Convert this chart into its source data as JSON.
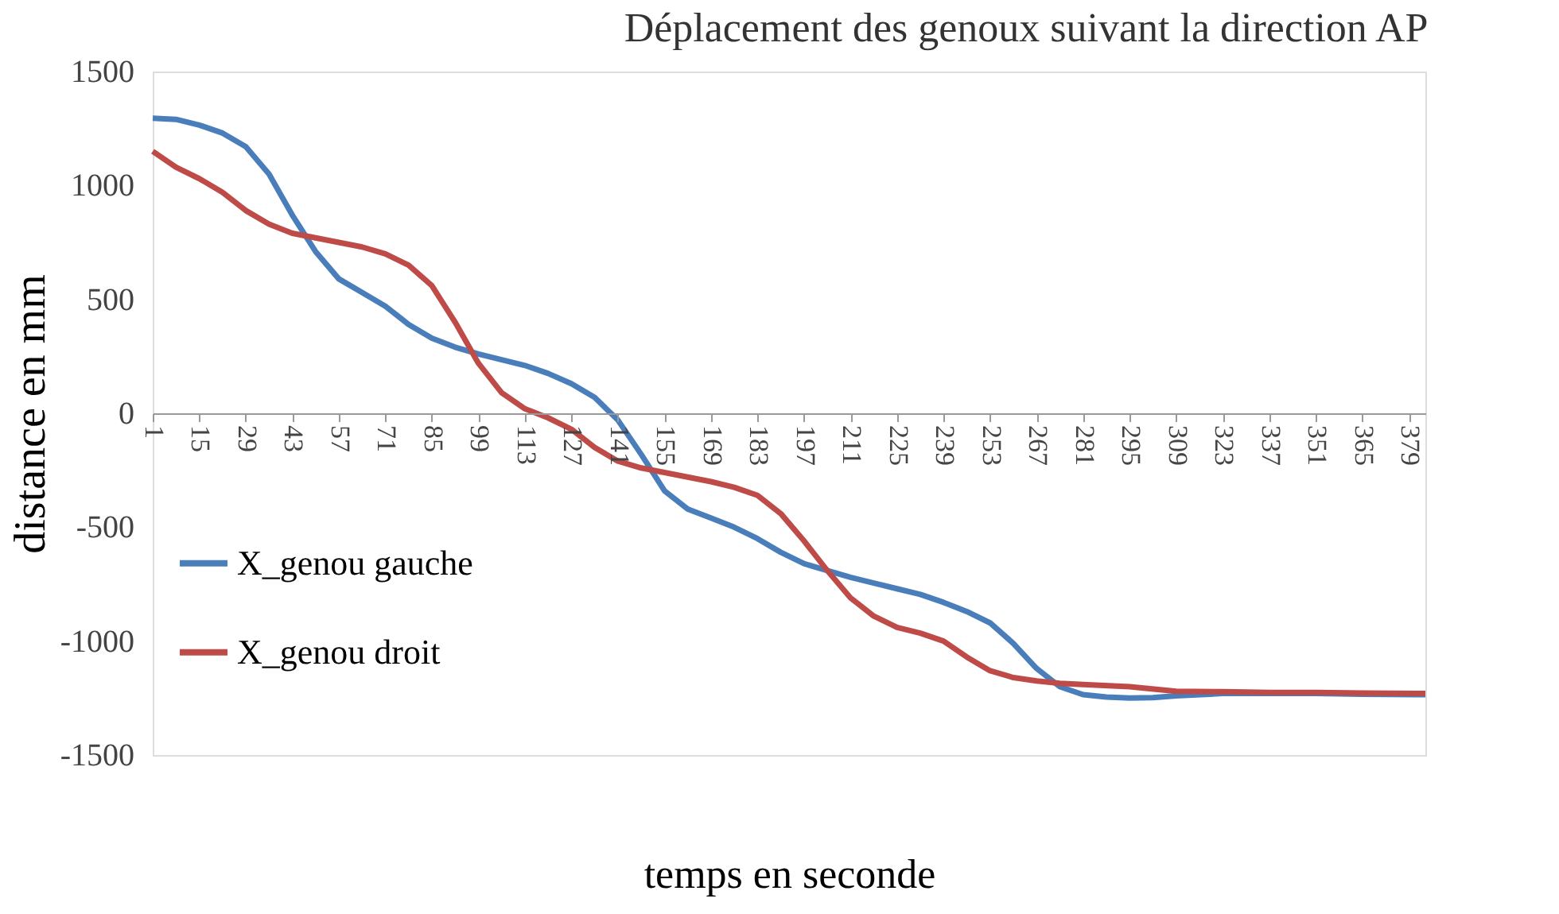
{
  "chart_data": {
    "type": "line",
    "title": "Déplacement des genoux suivant la direction AP",
    "xlabel": "temps en seconde",
    "ylabel": "distance en mm",
    "xlim": [
      1,
      384
    ],
    "xticks": [
      1,
      15,
      29,
      43,
      57,
      71,
      85,
      99,
      113,
      127,
      141,
      155,
      169,
      183,
      197,
      211,
      225,
      239,
      253,
      267,
      281,
      295,
      309,
      323,
      337,
      351,
      365,
      379
    ],
    "ylim": [
      -1500,
      1500
    ],
    "yticks": [
      -1500,
      -1000,
      -500,
      0,
      500,
      1000,
      1500
    ],
    "grid": false,
    "legend": "left",
    "marker": "none",
    "line_style": "solid",
    "series": [
      {
        "name": "X_genou gauche",
        "color": "#4a7ebb",
        "x": [
          1,
          8,
          15,
          22,
          29,
          36,
          43,
          50,
          57,
          64,
          71,
          78,
          85,
          92,
          99,
          106,
          113,
          120,
          127,
          134,
          141,
          148,
          155,
          162,
          169,
          176,
          183,
          190,
          197,
          204,
          211,
          218,
          225,
          232,
          239,
          246,
          253,
          260,
          267,
          274,
          281,
          288,
          295,
          302,
          309,
          323,
          337,
          351,
          365,
          384
        ],
        "values": [
          1295,
          1290,
          1265,
          1230,
          1170,
          1050,
          870,
          710,
          590,
          530,
          470,
          390,
          330,
          290,
          260,
          235,
          210,
          175,
          130,
          70,
          -30,
          -180,
          -340,
          -420,
          -460,
          -500,
          -550,
          -610,
          -660,
          -690,
          -720,
          -745,
          -770,
          -795,
          -830,
          -870,
          -920,
          -1010,
          -1120,
          -1200,
          -1235,
          -1245,
          -1250,
          -1248,
          -1240,
          -1230,
          -1230,
          -1230,
          -1233,
          -1235
        ]
      },
      {
        "name": "X_genou droit",
        "color": "#be4b48",
        "x": [
          1,
          8,
          15,
          22,
          29,
          36,
          43,
          50,
          57,
          64,
          71,
          78,
          85,
          92,
          99,
          106,
          113,
          120,
          127,
          134,
          141,
          148,
          155,
          162,
          169,
          176,
          183,
          190,
          197,
          204,
          211,
          218,
          225,
          232,
          239,
          246,
          253,
          260,
          267,
          274,
          281,
          295,
          309,
          323,
          337,
          351,
          365,
          384
        ],
        "values": [
          1150,
          1080,
          1030,
          970,
          890,
          830,
          790,
          770,
          750,
          730,
          700,
          650,
          560,
          400,
          220,
          90,
          20,
          -20,
          -70,
          -150,
          -210,
          -240,
          -260,
          -280,
          -300,
          -325,
          -360,
          -440,
          -560,
          -690,
          -810,
          -890,
          -940,
          -965,
          -1000,
          -1070,
          -1130,
          -1160,
          -1175,
          -1185,
          -1190,
          -1200,
          -1220,
          -1222,
          -1225,
          -1225,
          -1228,
          -1230
        ]
      }
    ]
  }
}
